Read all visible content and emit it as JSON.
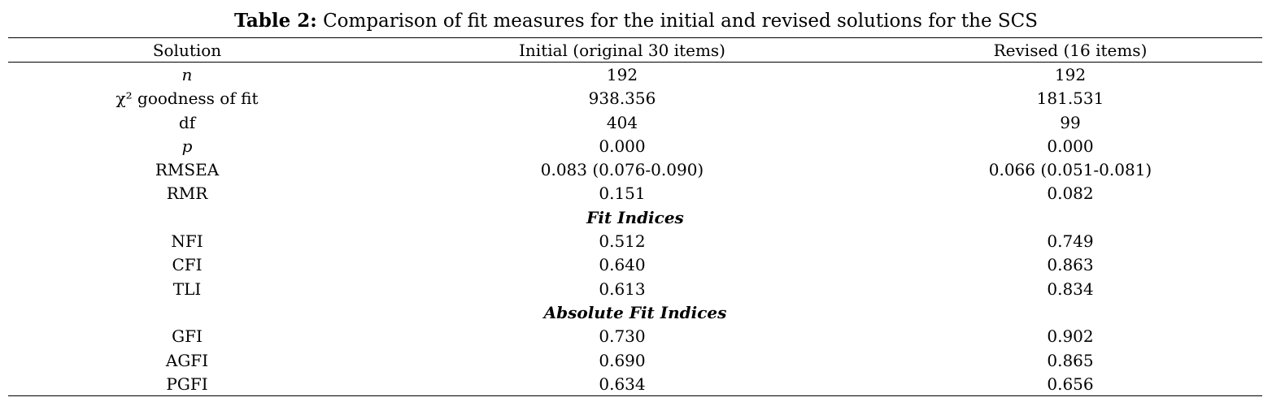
{
  "caption": {
    "label": "Table 2:",
    "text": "Comparison of fit measures for the initial and revised solutions for the SCS"
  },
  "headers": [
    "Solution",
    "Initial (original 30 items)",
    "Revised (16 items)"
  ],
  "rows": [
    {
      "label": "n",
      "initial": "192",
      "revised": "192"
    },
    {
      "label": "χ² goodness of fit",
      "initial": "938.356",
      "revised": "181.531"
    },
    {
      "label": "df",
      "initial": "404",
      "revised": "99"
    },
    {
      "label": "p",
      "initial": "0.000",
      "revised": "0.000"
    },
    {
      "label": "RMSEA",
      "initial": "0.083 (0.076-0.090)",
      "revised": "0.066 (0.051-0.081)"
    },
    {
      "label": "RMR",
      "initial": "0.151",
      "revised": "0.082"
    },
    {
      "section": "Fit Indices"
    },
    {
      "label": "NFI",
      "initial": "0.512",
      "revised": "0.749"
    },
    {
      "label": "CFI",
      "initial": "0.640",
      "revised": "0.863"
    },
    {
      "label": "TLI",
      "initial": "0.613",
      "revised": "0.834"
    },
    {
      "section": "Absolute Fit Indices"
    },
    {
      "label": "GFI",
      "initial": "0.730",
      "revised": "0.902"
    },
    {
      "label": "AGFI",
      "initial": "0.690",
      "revised": "0.865"
    },
    {
      "label": "PGFI",
      "initial": "0.634",
      "revised": "0.656"
    }
  ]
}
